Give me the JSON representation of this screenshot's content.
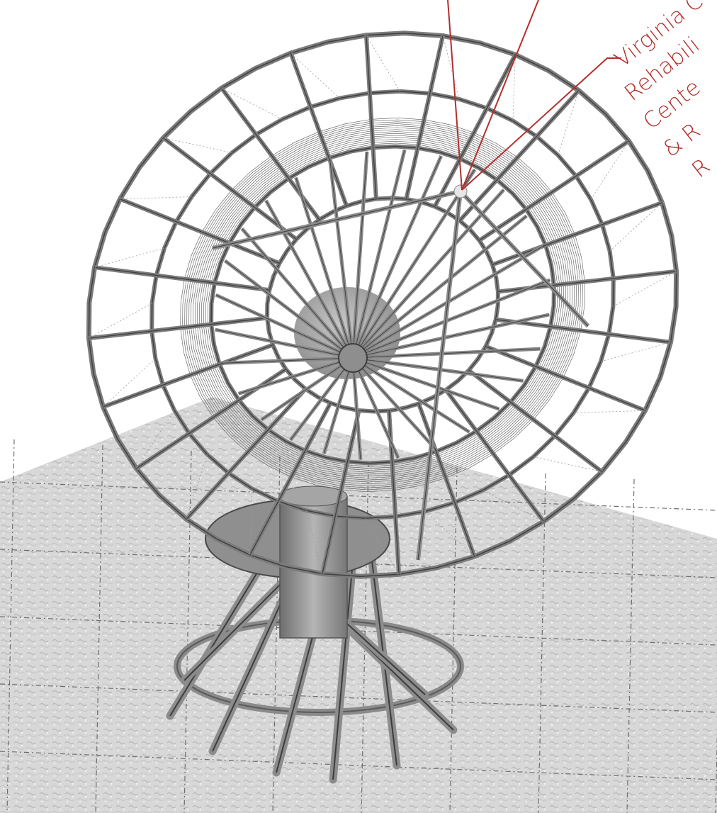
{
  "annotation": {
    "lines": [
      "Virginia C",
      "Rehabili",
      "Cente",
      "& R",
      "R"
    ],
    "color": "#b2302c"
  },
  "colors": {
    "ground": "#d6d6d6",
    "ground_grid": "#6d6d6d",
    "dish_frame": "#7c7c7c",
    "dish_frame_dark": "#3f3f3f",
    "hub": "#8a8a8a",
    "base": "#9a9a9a"
  }
}
